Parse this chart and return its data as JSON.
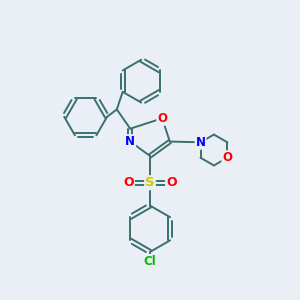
{
  "bg_color": "#eaeff5",
  "atom_colors": {
    "C": "#3a7070",
    "N": "#0000ff",
    "O": "#ff0000",
    "S": "#cccc00",
    "Cl": "#00bb00"
  },
  "bond_color": "#3a7070",
  "bond_width": 1.4,
  "figsize": [
    3.0,
    3.0
  ],
  "dpi": 100
}
